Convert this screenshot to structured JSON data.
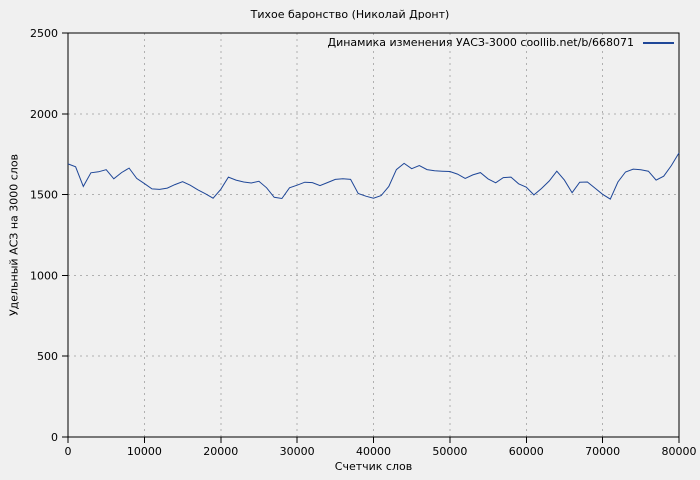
{
  "window": {
    "title": "Тихое баронство (Николай Дронт)"
  },
  "colors": {
    "background": "#f0f0f0",
    "axis": "#000000",
    "grid": "#b0b0b0",
    "series_line": "#1f4798",
    "text": "#000000"
  },
  "chart_data": {
    "type": "line",
    "title": "Тихое баронство (Николай Дронт)",
    "xlabel": "Счетчик слов",
    "ylabel": "Удельный АСЗ на 3000 слов",
    "xlim": [
      0,
      80000
    ],
    "ylim": [
      0,
      2500
    ],
    "x_ticks": [
      0,
      10000,
      20000,
      30000,
      40000,
      50000,
      60000,
      70000,
      80000
    ],
    "y_ticks": [
      0,
      500,
      1000,
      1500,
      2000,
      2500
    ],
    "grid": true,
    "grid_style": "dashed",
    "legend_position": "top-right-inside",
    "series": [
      {
        "name": "Динамика изменения УАСЗ-3000 coollib.net/b/668071",
        "color": "#1f4798",
        "x_start": 0,
        "x_step": 1000,
        "values": [
          1690,
          1672,
          1551,
          1635,
          1641,
          1654,
          1598,
          1636,
          1664,
          1600,
          1568,
          1535,
          1532,
          1540,
          1562,
          1580,
          1558,
          1530,
          1505,
          1478,
          1533,
          1608,
          1590,
          1578,
          1572,
          1582,
          1542,
          1483,
          1476,
          1542,
          1558,
          1577,
          1574,
          1556,
          1575,
          1594,
          1598,
          1594,
          1507,
          1490,
          1478,
          1494,
          1550,
          1655,
          1693,
          1660,
          1680,
          1655,
          1647,
          1645,
          1643,
          1627,
          1600,
          1622,
          1636,
          1597,
          1573,
          1605,
          1608,
          1567,
          1546,
          1498,
          1538,
          1584,
          1645,
          1590,
          1512,
          1577,
          1578,
          1540,
          1502,
          1472,
          1578,
          1640,
          1658,
          1654,
          1645,
          1590,
          1614,
          1680,
          1758
        ]
      }
    ]
  }
}
